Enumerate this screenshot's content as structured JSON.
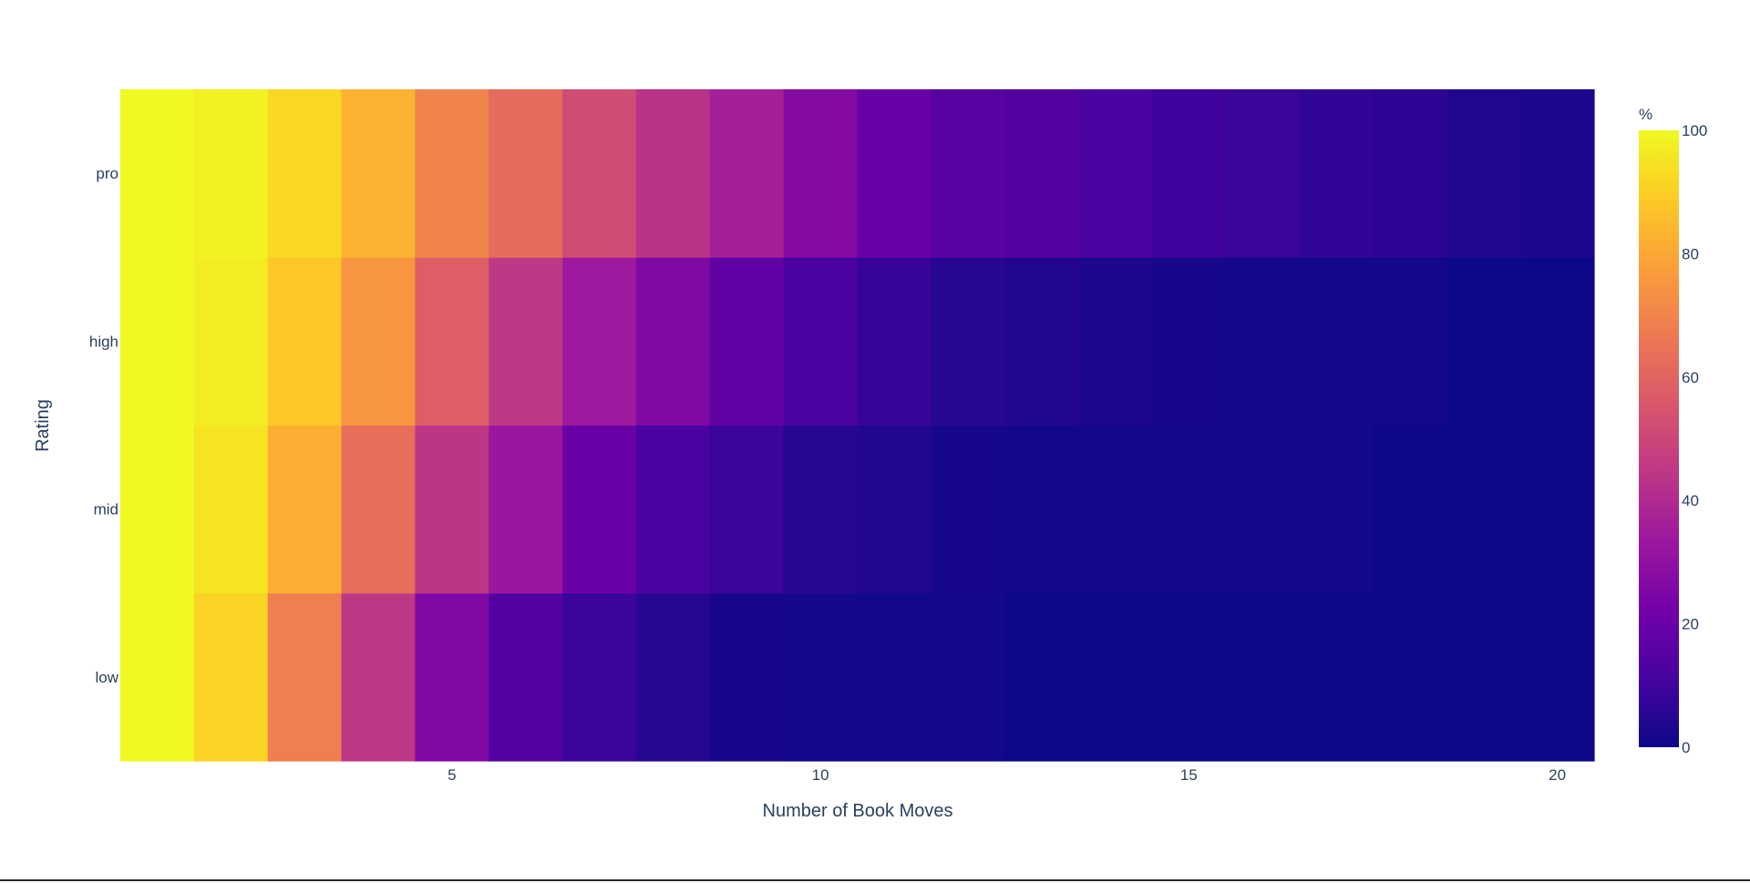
{
  "chart_data": {
    "type": "heatmap",
    "title": "",
    "xlabel": "Number of Book Moves",
    "ylabel": "Rating",
    "x": [
      1,
      2,
      3,
      4,
      5,
      6,
      7,
      8,
      9,
      10,
      11,
      12,
      13,
      14,
      15,
      16,
      17,
      18,
      19,
      20
    ],
    "xlim": [
      0.5,
      20.5
    ],
    "xticks": [
      5,
      10,
      15,
      20
    ],
    "categories": [
      "low",
      "mid",
      "high",
      "pro"
    ],
    "colorbar": {
      "title": "%",
      "range": [
        0,
        100
      ],
      "ticks": [
        0,
        20,
        40,
        60,
        80,
        100
      ]
    },
    "colorscale": "plasma",
    "z": [
      [
        100,
        91,
        68,
        45,
        26,
        14,
        9,
        5,
        2,
        1,
        1,
        1,
        0,
        0,
        0,
        0,
        0,
        0,
        0,
        0
      ],
      [
        100,
        95,
        82,
        63,
        44,
        33,
        20,
        12,
        9,
        5,
        4,
        2,
        1,
        1,
        1,
        1,
        1,
        0,
        0,
        0
      ],
      [
        100,
        97,
        88,
        75,
        58,
        45,
        34,
        26,
        18,
        12,
        8,
        5,
        4,
        3,
        2,
        1,
        1,
        1,
        0,
        0
      ],
      [
        100,
        98,
        92,
        83,
        70,
        62,
        52,
        43,
        36,
        27,
        20,
        16,
        14,
        12,
        10,
        9,
        7,
        6,
        4,
        3
      ]
    ]
  }
}
